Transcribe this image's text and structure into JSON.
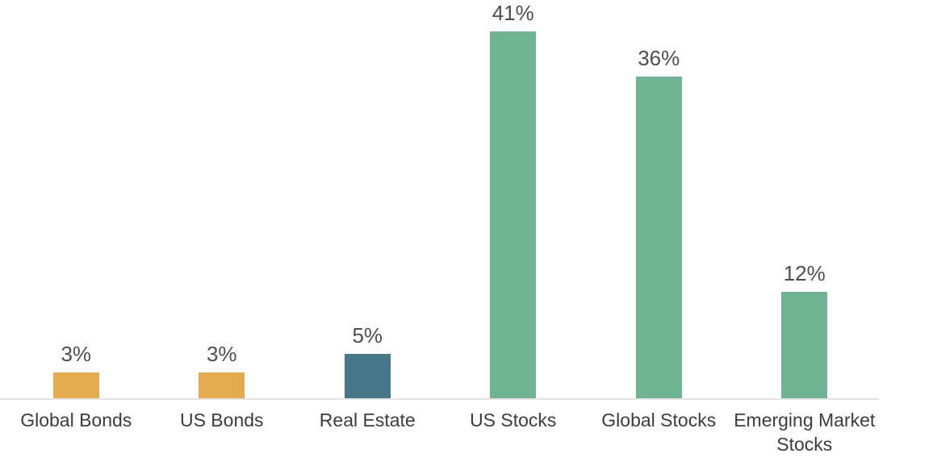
{
  "chart_data": {
    "type": "bar",
    "title": "",
    "xlabel": "",
    "ylabel": "",
    "categories": [
      "Global Bonds",
      "US Bonds",
      "Real Estate",
      "US Stocks",
      "Global Stocks",
      "Emerging Market Stocks"
    ],
    "values": [
      3,
      3,
      5,
      41,
      36,
      12
    ],
    "value_labels": [
      "3%",
      "3%",
      "5%",
      "41%",
      "36%",
      "12%"
    ],
    "bar_colors": [
      "#E5AC4E",
      "#E5AC4E",
      "#47788A",
      "#6FB592",
      "#6FB592",
      "#6FB592"
    ],
    "ylim": [
      0,
      44.5
    ],
    "grid": false,
    "legend": false,
    "value_label_color": "#4E4E4E",
    "category_label_color": "#3C3C3C",
    "axis_line_color": "#E4E4E4",
    "background_color": "#FFFFFF"
  }
}
